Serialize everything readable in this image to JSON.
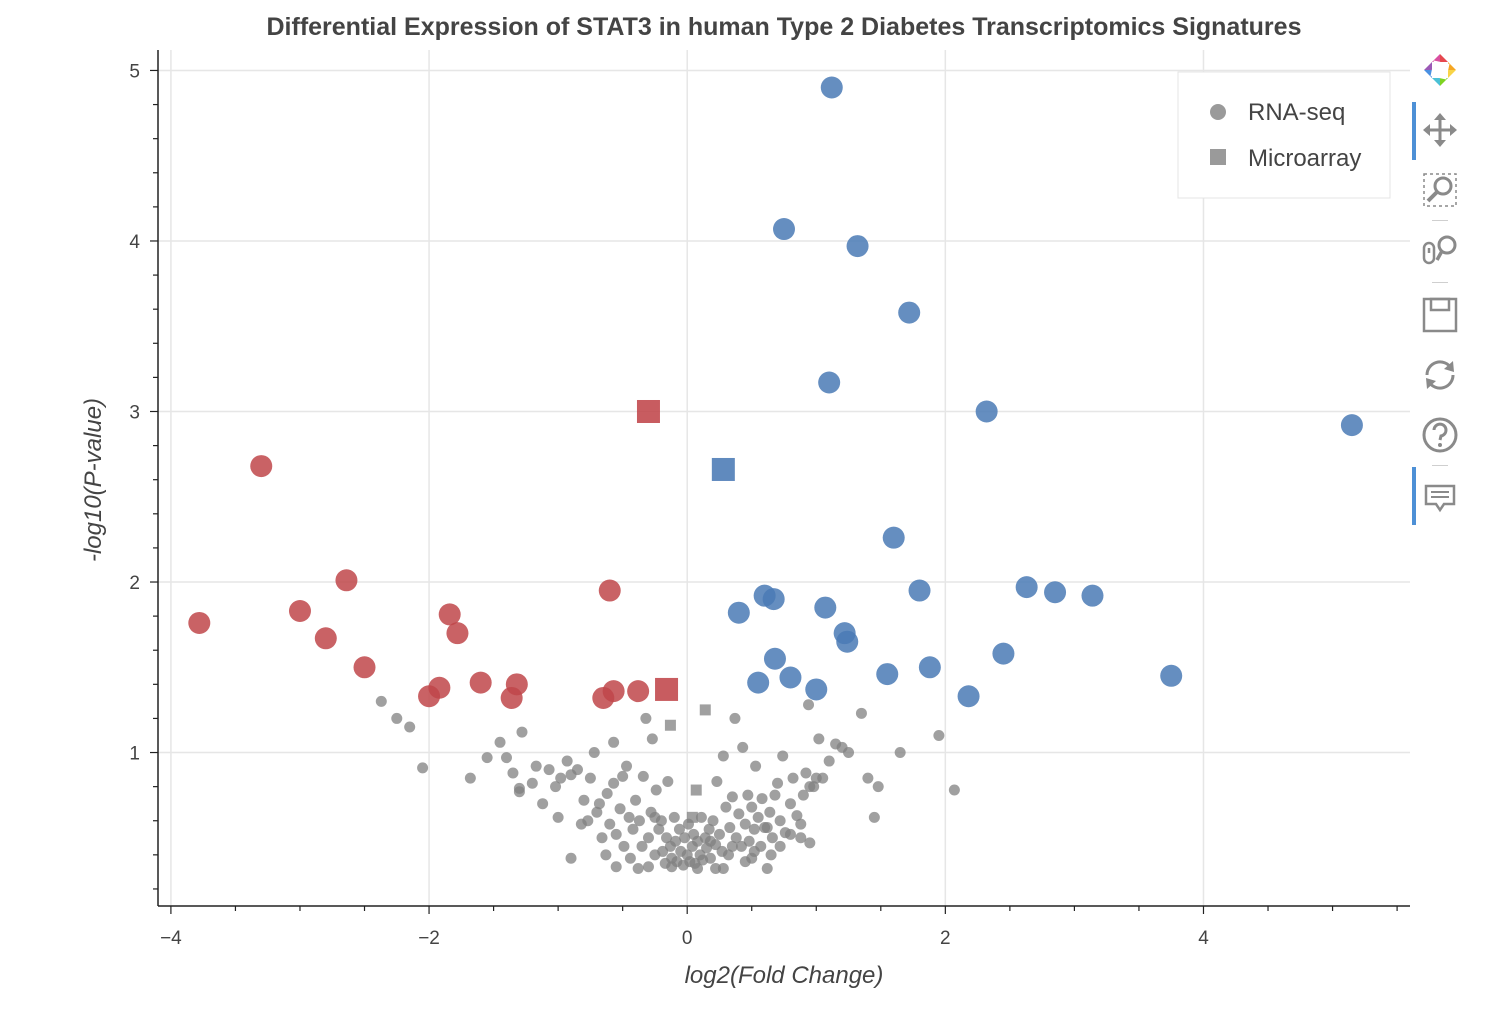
{
  "chart_data": {
    "type": "scatter",
    "title": "Differential Expression of STAT3 in human Type 2 Diabetes Transcriptomics Signatures",
    "xlabel": "log2(Fold Change)",
    "ylabel": "-log10(P-value)",
    "xlim": [
      -4.1,
      5.6
    ],
    "ylim": [
      0.1,
      5.12
    ],
    "x_ticks": [
      -4,
      -2,
      0,
      2,
      4
    ],
    "x_tick_labels": [
      "−4",
      "−2",
      "0",
      "2",
      "4"
    ],
    "y_ticks": [
      1,
      2,
      3,
      4,
      5
    ],
    "y_tick_labels": [
      "1",
      "2",
      "3",
      "4",
      "5"
    ],
    "grid": true,
    "legend": {
      "placement": "top-right",
      "entries": [
        {
          "label": "RNA-seq",
          "marker": "circle"
        },
        {
          "label": "Microarray",
          "marker": "square"
        }
      ]
    },
    "colors": {
      "up": "#4a7ab5",
      "down": "#c0464a",
      "ns": "#808080",
      "legend_marker": "#9a9a9a"
    },
    "series": [
      {
        "category": "up",
        "marker": "circle",
        "points": [
          [
            1.12,
            4.9
          ],
          [
            0.75,
            4.07
          ],
          [
            1.32,
            3.97
          ],
          [
            1.72,
            3.58
          ],
          [
            1.1,
            3.17
          ],
          [
            2.32,
            3.0
          ],
          [
            5.15,
            2.92
          ],
          [
            1.6,
            2.26
          ],
          [
            1.8,
            1.95
          ],
          [
            2.63,
            1.97
          ],
          [
            2.85,
            1.94
          ],
          [
            3.14,
            1.92
          ],
          [
            0.6,
            1.92
          ],
          [
            0.67,
            1.9
          ],
          [
            1.07,
            1.85
          ],
          [
            0.4,
            1.82
          ],
          [
            1.22,
            1.7
          ],
          [
            1.24,
            1.65
          ],
          [
            0.68,
            1.55
          ],
          [
            2.45,
            1.58
          ],
          [
            1.88,
            1.5
          ],
          [
            1.55,
            1.46
          ],
          [
            3.75,
            1.45
          ],
          [
            0.8,
            1.44
          ],
          [
            0.55,
            1.41
          ],
          [
            1.0,
            1.37
          ],
          [
            2.18,
            1.33
          ]
        ]
      },
      {
        "category": "up",
        "marker": "square",
        "points": [
          [
            0.28,
            2.66
          ]
        ]
      },
      {
        "category": "down",
        "marker": "circle",
        "points": [
          [
            -3.3,
            2.68
          ],
          [
            -2.64,
            2.01
          ],
          [
            -0.6,
            1.95
          ],
          [
            -3.0,
            1.83
          ],
          [
            -1.84,
            1.81
          ],
          [
            -3.78,
            1.76
          ],
          [
            -1.78,
            1.7
          ],
          [
            -2.8,
            1.67
          ],
          [
            -2.5,
            1.5
          ],
          [
            -1.6,
            1.41
          ],
          [
            -1.32,
            1.4
          ],
          [
            -1.92,
            1.38
          ],
          [
            -0.57,
            1.36
          ],
          [
            -0.38,
            1.36
          ],
          [
            -2.0,
            1.33
          ],
          [
            -0.65,
            1.32
          ],
          [
            -1.36,
            1.32
          ]
        ]
      },
      {
        "category": "down",
        "marker": "square",
        "points": [
          [
            -0.3,
            3.0
          ],
          [
            -0.16,
            1.37
          ]
        ]
      },
      {
        "category": "ns",
        "marker": "circle",
        "points": [
          [
            -2.37,
            1.3
          ],
          [
            -2.25,
            1.2
          ],
          [
            -2.15,
            1.15
          ],
          [
            -2.05,
            0.91
          ],
          [
            -1.68,
            0.85
          ],
          [
            -1.55,
            0.97
          ],
          [
            -1.45,
            1.06
          ],
          [
            -1.4,
            0.97
          ],
          [
            -1.35,
            0.88
          ],
          [
            -1.3,
            0.77
          ],
          [
            -1.28,
            1.12
          ],
          [
            -1.2,
            0.82
          ],
          [
            -1.17,
            0.92
          ],
          [
            -1.12,
            0.7
          ],
          [
            -1.07,
            0.9
          ],
          [
            -1.02,
            0.8
          ],
          [
            -1.0,
            0.62
          ],
          [
            -0.98,
            0.85
          ],
          [
            -0.93,
            0.95
          ],
          [
            -0.9,
            0.87
          ],
          [
            -0.85,
            0.9
          ],
          [
            -0.8,
            0.72
          ],
          [
            -0.77,
            0.6
          ],
          [
            -0.75,
            0.85
          ],
          [
            -0.72,
            1.0
          ],
          [
            -0.7,
            0.65
          ],
          [
            -0.66,
            0.5
          ],
          [
            -0.62,
            0.76
          ],
          [
            -0.6,
            0.58
          ],
          [
            -0.57,
            1.06
          ],
          [
            -0.55,
            0.52
          ],
          [
            -0.52,
            0.67
          ],
          [
            -0.5,
            0.86
          ],
          [
            -0.49,
            0.45
          ],
          [
            -0.47,
            0.92
          ],
          [
            -0.44,
            0.38
          ],
          [
            -0.42,
            0.55
          ],
          [
            -0.4,
            0.72
          ],
          [
            -0.37,
            0.6
          ],
          [
            -0.35,
            0.45
          ],
          [
            -0.34,
            0.86
          ],
          [
            -0.32,
            1.2
          ],
          [
            -0.3,
            0.5
          ],
          [
            -0.28,
            0.65
          ],
          [
            -0.27,
            1.08
          ],
          [
            -0.25,
            0.4
          ],
          [
            -0.24,
            0.78
          ],
          [
            -0.22,
            0.55
          ],
          [
            -0.2,
            0.6
          ],
          [
            -0.19,
            0.42
          ],
          [
            -0.17,
            0.35
          ],
          [
            -0.16,
            0.5
          ],
          [
            -0.15,
            0.83
          ],
          [
            -0.13,
            0.45
          ],
          [
            -0.12,
            0.38
          ],
          [
            -0.1,
            0.62
          ],
          [
            -0.09,
            0.48
          ],
          [
            -0.08,
            0.36
          ],
          [
            -0.06,
            0.55
          ],
          [
            -0.05,
            0.42
          ],
          [
            -0.03,
            0.34
          ],
          [
            -0.02,
            0.5
          ],
          [
            0.0,
            0.4
          ],
          [
            0.01,
            0.58
          ],
          [
            0.02,
            0.36
          ],
          [
            0.04,
            0.45
          ],
          [
            0.05,
            0.52
          ],
          [
            0.06,
            0.35
          ],
          [
            0.08,
            0.48
          ],
          [
            0.1,
            0.4
          ],
          [
            0.11,
            0.62
          ],
          [
            0.12,
            0.37
          ],
          [
            0.14,
            0.5
          ],
          [
            0.15,
            0.44
          ],
          [
            0.17,
            0.55
          ],
          [
            0.18,
            0.38
          ],
          [
            0.2,
            0.6
          ],
          [
            0.22,
            0.46
          ],
          [
            0.23,
            0.83
          ],
          [
            0.25,
            0.52
          ],
          [
            0.27,
            0.42
          ],
          [
            0.28,
            0.98
          ],
          [
            0.3,
            0.68
          ],
          [
            0.32,
            0.4
          ],
          [
            0.33,
            0.56
          ],
          [
            0.35,
            0.74
          ],
          [
            0.37,
            1.2
          ],
          [
            0.38,
            0.5
          ],
          [
            0.4,
            0.64
          ],
          [
            0.42,
            0.45
          ],
          [
            0.43,
            1.03
          ],
          [
            0.45,
            0.58
          ],
          [
            0.47,
            0.75
          ],
          [
            0.48,
            0.48
          ],
          [
            0.5,
            0.68
          ],
          [
            0.52,
            0.55
          ],
          [
            0.53,
            0.92
          ],
          [
            0.55,
            0.62
          ],
          [
            0.57,
            0.45
          ],
          [
            0.58,
            0.73
          ],
          [
            0.6,
            0.56
          ],
          [
            0.62,
            0.32
          ],
          [
            0.64,
            0.65
          ],
          [
            0.66,
            0.5
          ],
          [
            0.68,
            0.75
          ],
          [
            0.7,
            0.82
          ],
          [
            0.72,
            0.6
          ],
          [
            0.74,
            0.98
          ],
          [
            0.76,
            0.53
          ],
          [
            0.8,
            0.7
          ],
          [
            0.82,
            0.85
          ],
          [
            0.85,
            0.63
          ],
          [
            0.88,
            0.5
          ],
          [
            0.9,
            0.75
          ],
          [
            0.92,
            0.88
          ],
          [
            0.95,
            0.8
          ],
          [
            0.98,
            0.8
          ],
          [
            1.0,
            0.85
          ],
          [
            1.02,
            1.08
          ],
          [
            1.05,
            0.85
          ],
          [
            1.1,
            0.95
          ],
          [
            1.15,
            1.05
          ],
          [
            1.2,
            1.03
          ],
          [
            1.25,
            1.0
          ],
          [
            1.35,
            1.23
          ],
          [
            1.4,
            0.85
          ],
          [
            1.45,
            0.62
          ],
          [
            1.48,
            0.8
          ],
          [
            1.65,
            1.0
          ],
          [
            1.95,
            1.1
          ],
          [
            2.07,
            0.78
          ],
          [
            0.94,
            1.28
          ],
          [
            -0.57,
            0.82
          ],
          [
            -0.82,
            0.58
          ],
          [
            -0.63,
            0.4
          ],
          [
            -0.45,
            0.62
          ],
          [
            -0.3,
            0.33
          ],
          [
            0.28,
            0.32
          ],
          [
            0.45,
            0.36
          ],
          [
            0.62,
            0.56
          ],
          [
            0.88,
            0.58
          ],
          [
            0.95,
            0.47
          ],
          [
            -1.3,
            0.79
          ],
          [
            -0.9,
            0.38
          ],
          [
            -0.38,
            0.32
          ],
          [
            0.5,
            0.38
          ],
          [
            0.65,
            0.4
          ],
          [
            0.8,
            0.52
          ],
          [
            -0.55,
            0.33
          ],
          [
            0.35,
            0.45
          ],
          [
            0.22,
            0.32
          ],
          [
            -0.12,
            0.33
          ],
          [
            0.08,
            0.32
          ],
          [
            0.18,
            0.48
          ],
          [
            -0.25,
            0.62
          ],
          [
            0.72,
            0.45
          ],
          [
            -0.68,
            0.7
          ],
          [
            0.52,
            0.42
          ]
        ]
      },
      {
        "category": "ns",
        "marker": "square",
        "points": [
          [
            -0.13,
            1.16
          ],
          [
            0.14,
            1.25
          ],
          [
            0.07,
            0.78
          ],
          [
            0.04,
            0.62
          ]
        ]
      }
    ]
  },
  "toolbar": {
    "tools": [
      {
        "name": "bokeh-logo-icon"
      },
      {
        "name": "pan-tool-icon"
      },
      {
        "name": "box-zoom-tool-icon"
      },
      {
        "name": "wheel-zoom-tool-icon"
      },
      {
        "name": "save-tool-icon"
      },
      {
        "name": "reset-tool-icon"
      },
      {
        "name": "help-tool-icon"
      },
      {
        "name": "hover-tool-icon"
      }
    ]
  }
}
